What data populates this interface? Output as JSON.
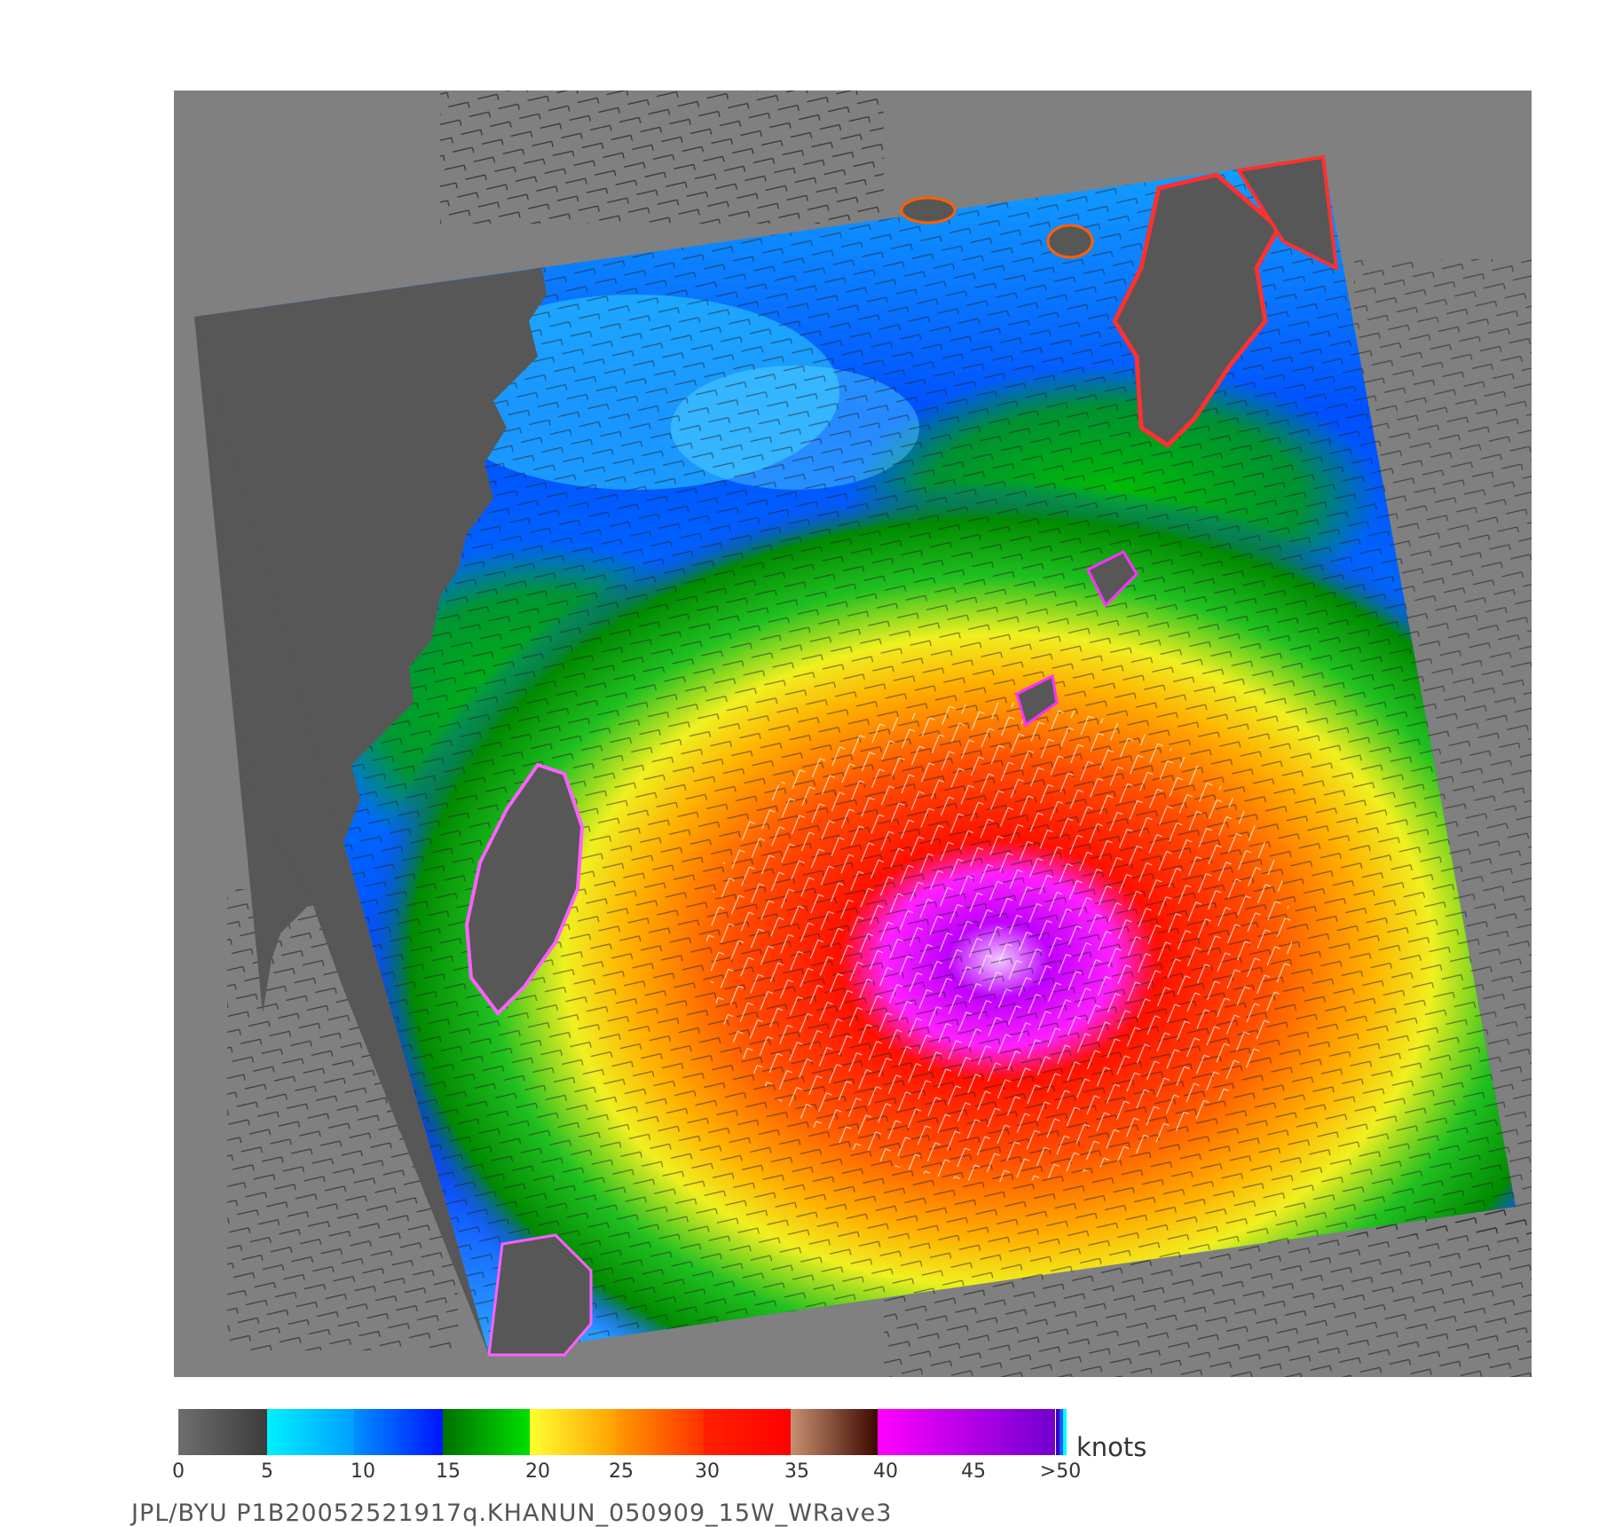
{
  "colors": {
    "frame_background": "#808080",
    "land": "#575757",
    "scale": [
      {
        "from": "#6e6e6e",
        "to": "#3c3c3c"
      },
      {
        "from": "#00f0ff",
        "to": "#00a0ff"
      },
      {
        "from": "#0090ff",
        "to": "#0014ff"
      },
      {
        "from": "#007000",
        "to": "#00e000"
      },
      {
        "from": "#ffff30",
        "to": "#ffa000"
      },
      {
        "from": "#ff9a00",
        "to": "#ff3000"
      },
      {
        "from": "#ff2000",
        "to": "#ff0000"
      },
      {
        "from": "#c89070",
        "to": "#3c0800"
      },
      {
        "from": "#ff00ff",
        "to": "#7000d0"
      }
    ],
    "scale_end": [
      "#4000c0",
      "#1060ff",
      "#00ffff"
    ]
  },
  "colorbar": {
    "unit": "knots",
    "tick_labels": [
      "0",
      "5",
      "10",
      "15",
      "20",
      "25",
      "30",
      "35",
      "40",
      "45",
      ">50"
    ]
  },
  "caption": "JPL/BYU  P1B20052521917q.KHANUN_050909_15W_WRave3"
}
